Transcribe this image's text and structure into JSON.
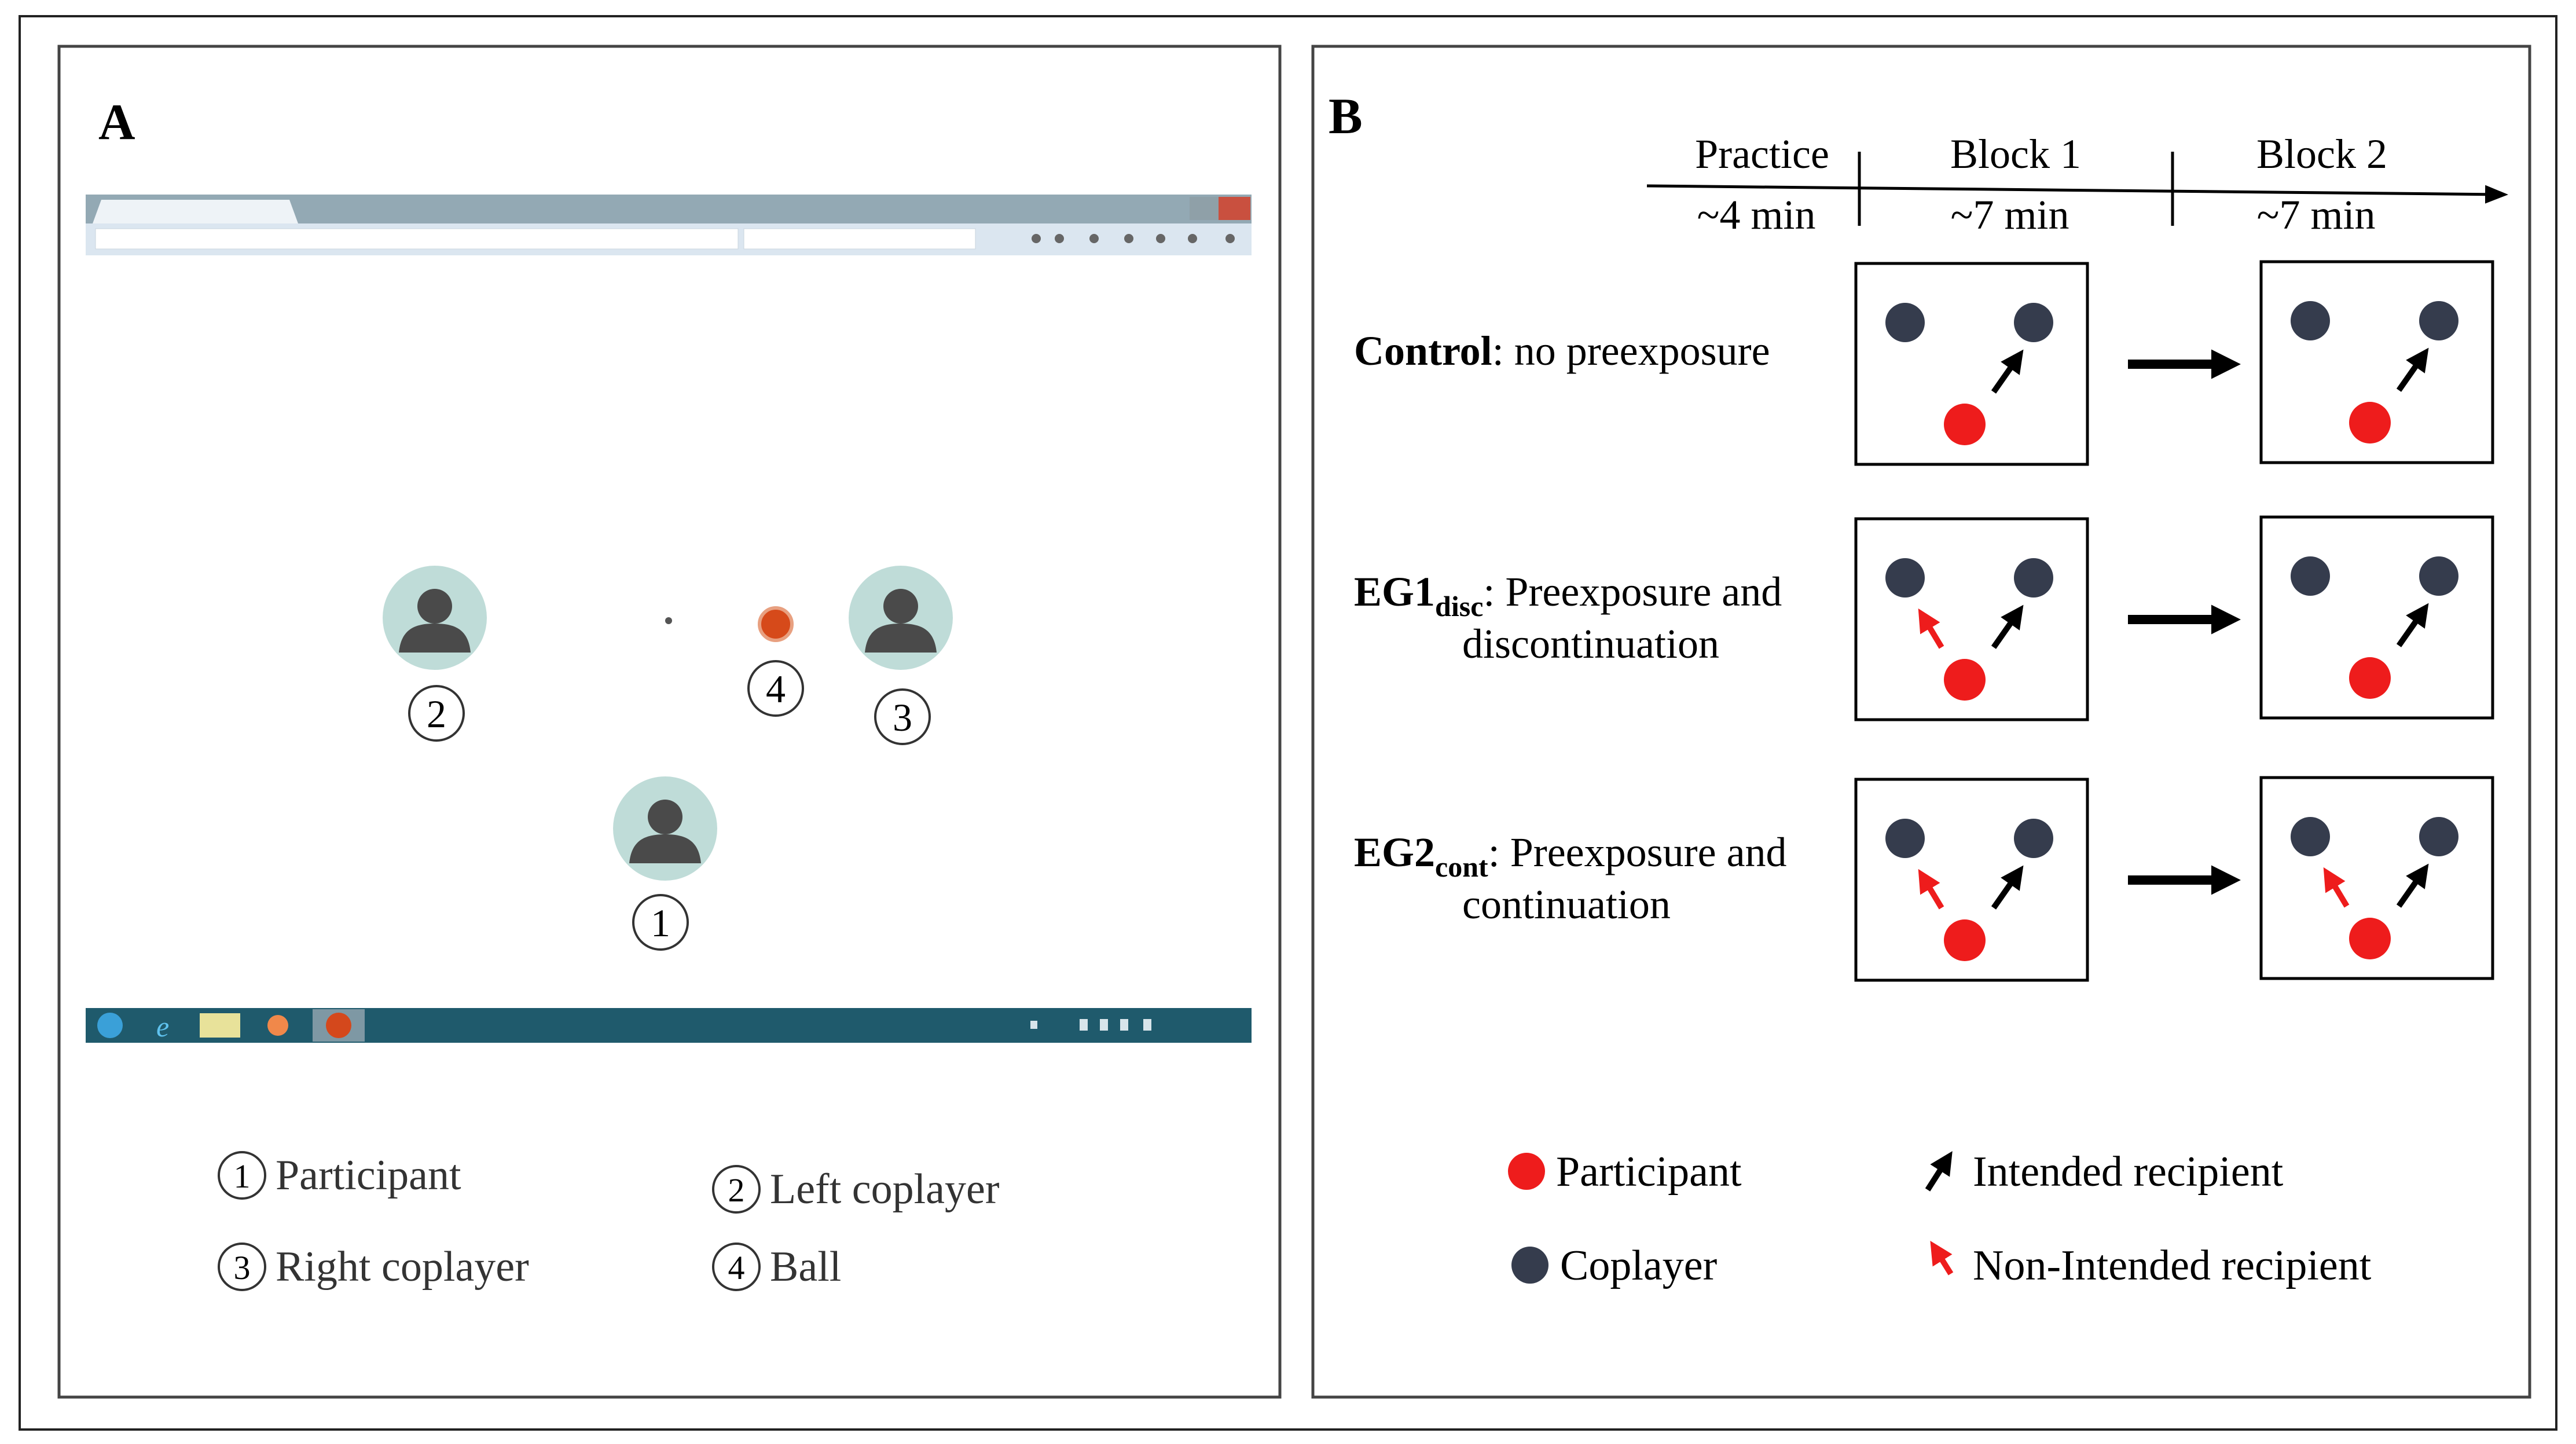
{
  "panel_a": {
    "label": "A",
    "avatars": [
      {
        "number": "1",
        "role": "participant"
      },
      {
        "number": "2",
        "role": "left-coplayer"
      },
      {
        "number": "3",
        "role": "right-coplayer"
      },
      {
        "number": "4",
        "role": "ball"
      }
    ],
    "legend": [
      {
        "number": "1",
        "text": "Participant"
      },
      {
        "number": "2",
        "text": "Left coplayer"
      },
      {
        "number": "3",
        "text": "Right coplayer"
      },
      {
        "number": "4",
        "text": "Ball"
      }
    ]
  },
  "panel_b": {
    "label": "B",
    "timeline": [
      {
        "phase": "Practice",
        "duration": "~4 min"
      },
      {
        "phase": "Block 1",
        "duration": "~7 min"
      },
      {
        "phase": "Block 2",
        "duration": "~7 min"
      }
    ],
    "rows": [
      {
        "name_main": "Control",
        "name_sub": "",
        "desc_line1": ": no preexposure",
        "desc_line2": "",
        "block1_nonintended": false,
        "block2_nonintended": false
      },
      {
        "name_main": "EG1",
        "name_sub": "disc",
        "desc_line1": ": Preexposure and",
        "desc_line2": "discontinuation",
        "block1_nonintended": true,
        "block2_nonintended": false
      },
      {
        "name_main": "EG2",
        "name_sub": "cont",
        "desc_line1": ": Preexposure and",
        "desc_line2": "continuation",
        "block1_nonintended": true,
        "block2_nonintended": true
      }
    ],
    "legend": {
      "participant": "Participant",
      "coplayer": "Coplayer",
      "intended": "Intended recipient",
      "nonintended": "Non-Intended recipient"
    },
    "colors": {
      "participant": "#ee1c1c",
      "coplayer": "#353c4d",
      "intended_arrow": "#000000",
      "nonintended_arrow": "#ee1c1c"
    }
  }
}
